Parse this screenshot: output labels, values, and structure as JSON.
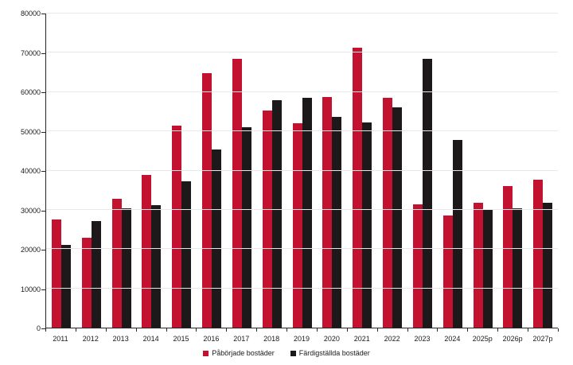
{
  "chart_data": {
    "type": "bar",
    "title": "",
    "categories": [
      "2011",
      "2012",
      "2013",
      "2014",
      "2015",
      "2016",
      "2017",
      "2018",
      "2019",
      "2020",
      "2021",
      "2022",
      "2023",
      "2024",
      "2025p",
      "2026p",
      "2027p"
    ],
    "series": [
      {
        "name": "Påbörjade bostäder",
        "color": "#c2122f",
        "values": [
          27600,
          22800,
          32800,
          38900,
          51400,
          64900,
          68400,
          55300,
          52100,
          58800,
          71200,
          58600,
          31300,
          28500,
          31800,
          36100,
          37700
        ]
      },
      {
        "name": "Färdigställda bostäder",
        "color": "#1d191a",
        "values": [
          21000,
          27100,
          30300,
          31100,
          37300,
          45300,
          51100,
          58000,
          58500,
          53700,
          52300,
          56100,
          68500,
          47700,
          29900,
          30400,
          31700
        ]
      }
    ],
    "xlabel": "",
    "ylabel": "",
    "ylim": [
      0,
      80000
    ],
    "ytick_step": 10000,
    "y_tick_labels": [
      "0",
      "10000",
      "20000",
      "30000",
      "40000",
      "50000",
      "60000",
      "70000",
      "80000"
    ],
    "grid": "horizontal",
    "legend_position": "bottom"
  }
}
